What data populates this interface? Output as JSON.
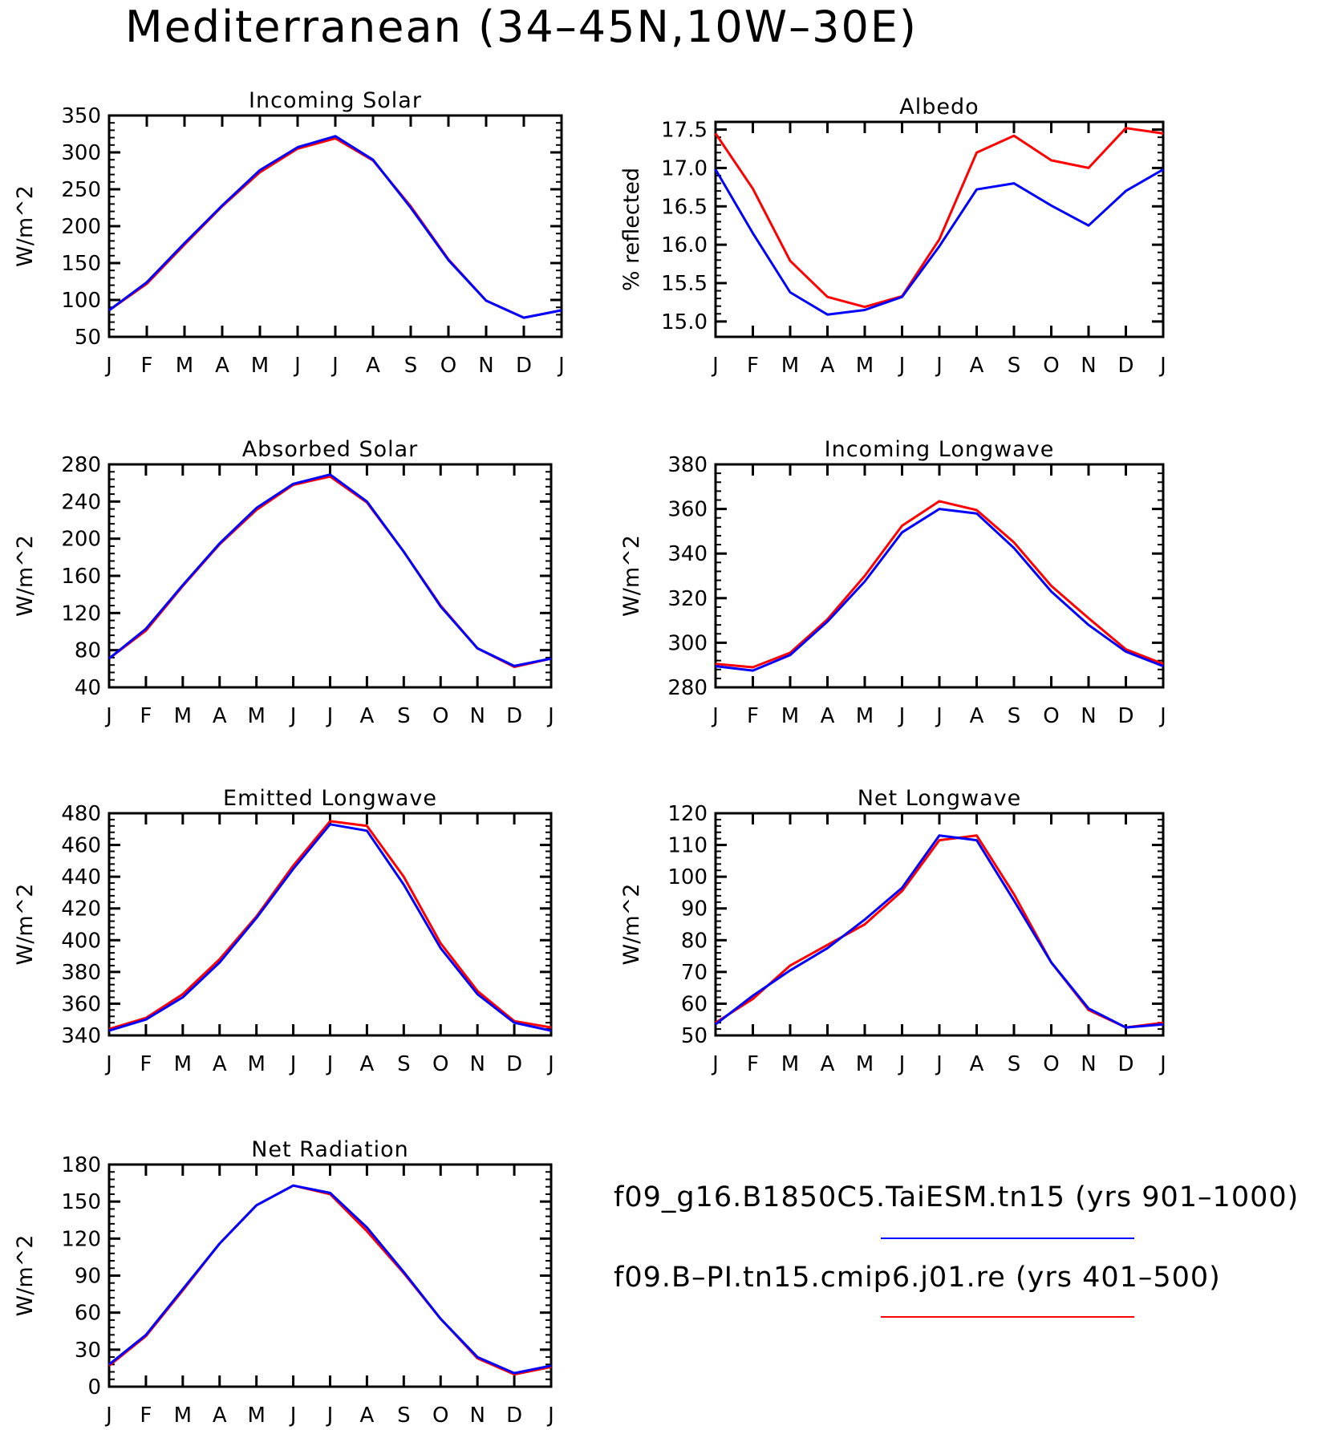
{
  "figure": {
    "title": "Mediterranean (34–45N,10W–30E)"
  },
  "colors": {
    "case": "#0000ff",
    "control": "#ff0000"
  },
  "chart_data": [
    {
      "type": "line",
      "title": "Incoming Solar",
      "ylabel": "W/m^2",
      "categories": [
        "J",
        "F",
        "M",
        "A",
        "M",
        "J",
        "J",
        "A",
        "S",
        "O",
        "N",
        "D",
        "J"
      ],
      "ylim": [
        50,
        350
      ],
      "yticks": [
        "50",
        "100",
        "150",
        "200",
        "250",
        "300",
        "350"
      ],
      "series": [
        {
          "color": "blue",
          "values": [
            86,
            124,
            177,
            228,
            276,
            307,
            322,
            290,
            225,
            154,
            99,
            76,
            86
          ]
        },
        {
          "color": "red",
          "values": [
            86,
            122,
            175,
            227,
            273,
            305,
            319,
            289,
            227,
            155,
            99,
            76,
            86
          ]
        }
      ]
    },
    {
      "type": "line",
      "title": "Albedo",
      "ylabel": "% reflected",
      "categories": [
        "J",
        "F",
        "M",
        "A",
        "M",
        "J",
        "J",
        "A",
        "S",
        "O",
        "N",
        "D",
        "J"
      ],
      "ylim": [
        14.8,
        17.6
      ],
      "yticks": [
        "15.0",
        "15.5",
        "16.0",
        "16.5",
        "17.0",
        "17.5"
      ],
      "series": [
        {
          "color": "blue",
          "values": [
            16.98,
            16.15,
            15.38,
            15.09,
            15.15,
            15.32,
            15.98,
            16.72,
            16.8,
            16.51,
            16.25,
            16.7,
            16.98
          ]
        },
        {
          "color": "red",
          "values": [
            17.45,
            16.73,
            15.79,
            15.32,
            15.19,
            15.33,
            16.07,
            17.2,
            17.42,
            17.1,
            17.0,
            17.52,
            17.45
          ]
        }
      ]
    },
    {
      "type": "line",
      "title": "Absorbed Solar",
      "ylabel": "W/m^2",
      "categories": [
        "J",
        "F",
        "M",
        "A",
        "M",
        "J",
        "J",
        "A",
        "S",
        "O",
        "N",
        "D",
        "J"
      ],
      "ylim": [
        40,
        280
      ],
      "yticks": [
        "40",
        "80",
        "120",
        "160",
        "200",
        "240",
        "280"
      ],
      "series": [
        {
          "color": "blue",
          "values": [
            71,
            103,
            150,
            195,
            233,
            259,
            269,
            240,
            186,
            127,
            82,
            63,
            71
          ]
        },
        {
          "color": "red",
          "values": [
            71,
            101,
            149,
            194,
            231,
            258,
            267,
            239,
            186,
            128,
            82,
            62,
            71
          ]
        }
      ]
    },
    {
      "type": "line",
      "title": "Incoming Longwave",
      "ylabel": "W/m^2",
      "categories": [
        "J",
        "F",
        "M",
        "A",
        "M",
        "J",
        "J",
        "A",
        "S",
        "O",
        "N",
        "D",
        "J"
      ],
      "ylim": [
        280,
        380
      ],
      "yticks": [
        "280",
        "300",
        "320",
        "340",
        "360",
        "380"
      ],
      "series": [
        {
          "color": "blue",
          "values": [
            289.5,
            287.5,
            294.5,
            309.5,
            327.5,
            349.5,
            360,
            358,
            342.5,
            323,
            308,
            296,
            289.5
          ]
        },
        {
          "color": "red",
          "values": [
            290.5,
            289,
            295.5,
            310.5,
            330,
            352.5,
            363.5,
            359.5,
            345,
            325.5,
            311,
            297,
            290.5
          ]
        }
      ]
    },
    {
      "type": "line",
      "title": "Emitted Longwave",
      "ylabel": "W/m^2",
      "categories": [
        "J",
        "F",
        "M",
        "A",
        "M",
        "J",
        "J",
        "A",
        "S",
        "O",
        "N",
        "D",
        "J"
      ],
      "ylim": [
        340,
        480
      ],
      "yticks": [
        "340",
        "360",
        "380",
        "400",
        "420",
        "440",
        "460",
        "480"
      ],
      "series": [
        {
          "color": "blue",
          "values": [
            343,
            350,
            364,
            386,
            414,
            445,
            473,
            469,
            435,
            395,
            366,
            348,
            343
          ]
        },
        {
          "color": "red",
          "values": [
            344,
            351,
            366,
            388,
            415,
            447,
            475,
            472,
            440,
            398,
            368,
            349,
            345
          ]
        }
      ]
    },
    {
      "type": "line",
      "title": "Net Longwave",
      "ylabel": "W/m^2",
      "categories": [
        "J",
        "F",
        "M",
        "A",
        "M",
        "J",
        "J",
        "A",
        "S",
        "O",
        "N",
        "D",
        "J"
      ],
      "ylim": [
        50,
        120
      ],
      "yticks": [
        "50",
        "60",
        "70",
        "80",
        "90",
        "100",
        "110",
        "120"
      ],
      "series": [
        {
          "color": "blue",
          "values": [
            53.5,
            62.5,
            70.5,
            77.5,
            86.5,
            96.5,
            113,
            111.5,
            92.5,
            73,
            58.5,
            52.5,
            53.5
          ]
        },
        {
          "color": "red",
          "values": [
            54,
            61.5,
            72,
            78.5,
            85,
            95.5,
            111.5,
            113,
            94.5,
            73,
            58,
            52.5,
            54
          ]
        }
      ]
    },
    {
      "type": "line",
      "title": "Net Radiation",
      "ylabel": "W/m^2",
      "categories": [
        "J",
        "F",
        "M",
        "A",
        "M",
        "J",
        "J",
        "A",
        "S",
        "O",
        "N",
        "D",
        "J"
      ],
      "ylim": [
        0,
        180
      ],
      "yticks": [
        "0",
        "30",
        "60",
        "90",
        "120",
        "150",
        "180"
      ],
      "series": [
        {
          "color": "blue",
          "values": [
            18,
            42,
            79,
            116,
            147,
            163,
            157,
            129,
            93,
            55,
            24,
            11,
            17
          ]
        },
        {
          "color": "red",
          "values": [
            17,
            41,
            78,
            116,
            147,
            163,
            156,
            126,
            92,
            55,
            23,
            10,
            16
          ]
        }
      ]
    }
  ],
  "legend": [
    {
      "label": "f09_g16.B1850C5.TaiESM.tn15 (yrs 901–1000)",
      "color": "blue"
    },
    {
      "label": "f09.B–PI.tn15.cmip6.j01.re (yrs 401–500)",
      "color": "red"
    }
  ]
}
